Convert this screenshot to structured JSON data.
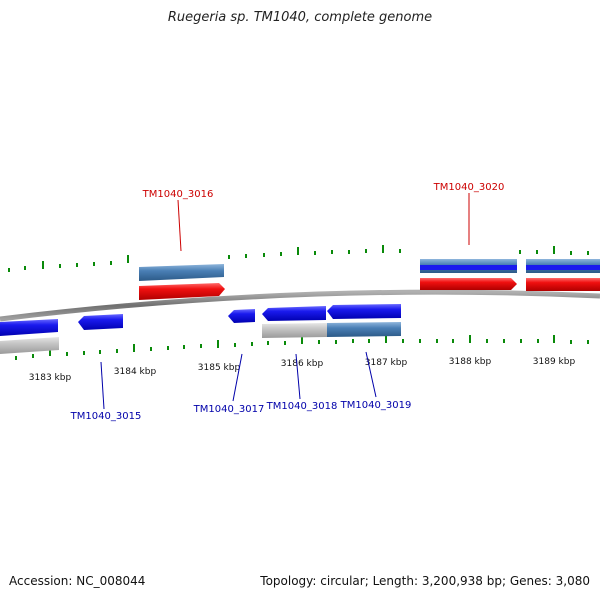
{
  "title": "Ruegeria sp. TM1040, complete genome",
  "footer": {
    "accession_label": "Accession:",
    "accession_value": "NC_008044",
    "topology_label": "Topology:",
    "topology_value": "circular",
    "length_label": "Length:",
    "length_value": "3,200,938 bp",
    "genes_label": "Genes:",
    "genes_value": "3,080"
  },
  "colors": {
    "forward_cds": "#1414e6",
    "reverse_cds": "#ec0a0a",
    "other_feature": "#4a7fb5",
    "neutral_feature": "#c4c4c4",
    "tick": "#0a8a0a",
    "backbone": "#888888",
    "label_top": "#cc0000",
    "label_bottom": "#0000aa"
  },
  "kbp_labels": [
    "3183 kbp",
    "3184 kbp",
    "3185 kbp",
    "3186 kbp",
    "3187 kbp",
    "3188 kbp",
    "3189 kbp"
  ],
  "gene_labels_top": [
    "TM1040_3016",
    "TM1040_3020"
  ],
  "gene_labels_bottom": [
    "TM1040_3015",
    "TM1040_3017",
    "TM1040_3018",
    "TM1040_3019"
  ]
}
